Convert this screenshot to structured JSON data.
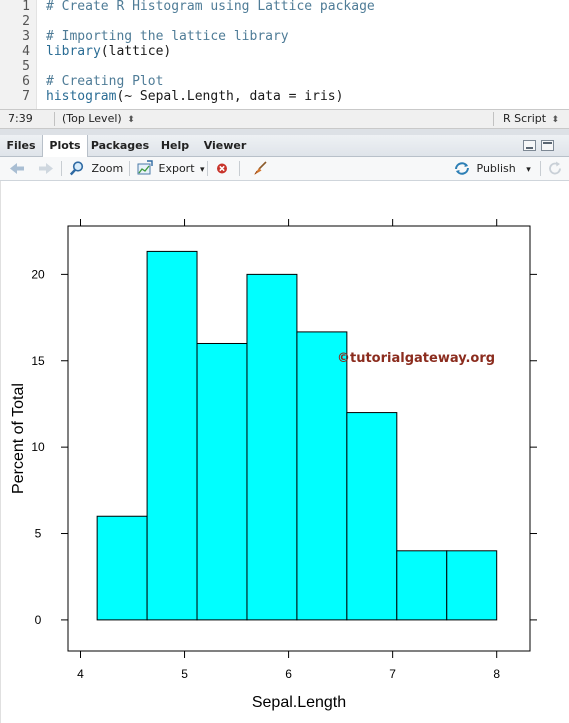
{
  "editor": {
    "lines": [
      {
        "num": "1",
        "tokens": [
          {
            "t": "# Create R Histogram using Lattice package",
            "c": "comment"
          }
        ]
      },
      {
        "num": "2",
        "tokens": []
      },
      {
        "num": "3",
        "tokens": [
          {
            "t": "# Importing the lattice library",
            "c": "comment"
          }
        ]
      },
      {
        "num": "4",
        "tokens": [
          {
            "t": "library",
            "c": "fn"
          },
          {
            "t": "(lattice)",
            "c": "plain"
          }
        ]
      },
      {
        "num": "5",
        "tokens": []
      },
      {
        "num": "6",
        "tokens": [
          {
            "t": "# Creating Plot",
            "c": "comment"
          }
        ]
      },
      {
        "num": "7",
        "tokens": [
          {
            "t": "histogram",
            "c": "fn"
          },
          {
            "t": "(~ Sepal.Length, data = iris)",
            "c": "plain"
          }
        ]
      }
    ]
  },
  "status_bar": {
    "cursor": "7:39",
    "scope": "(Top Level)",
    "scope_arrow": "⬍",
    "file_type": "R Script",
    "file_type_arrow": "⬍"
  },
  "tabs": [
    {
      "label": "Files",
      "active": false
    },
    {
      "label": "Plots",
      "active": true
    },
    {
      "label": "Packages",
      "active": false
    },
    {
      "label": "Help",
      "active": false
    },
    {
      "label": "Viewer",
      "active": false
    }
  ],
  "toolbar": {
    "zoom_label": "Zoom",
    "export_label": "Export",
    "export_arrow": "▾",
    "publish_label": "Publish",
    "publish_arrow": "▾"
  },
  "colors": {
    "bar_fill": "#00ffff",
    "watermark": "#8b2c1e"
  },
  "icons": [
    "back-arrow-icon",
    "forward-arrow-icon",
    "zoom-icon",
    "export-icon",
    "remove-plot-icon",
    "clear-all-broom-icon",
    "publish-icon",
    "refresh-icon",
    "minimize-icon",
    "maximize-icon"
  ],
  "watermark": "©tutorialgateway.org",
  "chart_data": {
    "type": "bar",
    "title": "",
    "xlabel": "Sepal.Length",
    "ylabel": "Percent of Total",
    "bins": [
      {
        "from": 4.16,
        "to": 4.64,
        "value": 6.0
      },
      {
        "from": 4.64,
        "to": 5.12,
        "value": 21.33
      },
      {
        "from": 5.12,
        "to": 5.6,
        "value": 16.0
      },
      {
        "from": 5.6,
        "to": 6.08,
        "value": 20.0
      },
      {
        "from": 6.08,
        "to": 6.56,
        "value": 16.67
      },
      {
        "from": 6.56,
        "to": 7.04,
        "value": 12.0
      },
      {
        "from": 7.04,
        "to": 7.52,
        "value": 4.0
      },
      {
        "from": 7.52,
        "to": 8.0,
        "value": 4.0
      }
    ],
    "xlim": [
      3.88,
      8.32
    ],
    "ylim": [
      -1.8,
      22.8
    ],
    "xticks": [
      "4",
      "5",
      "6",
      "7",
      "8"
    ],
    "xtick_values": [
      4,
      5,
      6,
      7,
      8
    ],
    "yticks": [
      "0",
      "5",
      "10",
      "15",
      "20"
    ],
    "ytick_values": [
      0,
      5,
      10,
      15,
      20
    ],
    "grid": false
  }
}
